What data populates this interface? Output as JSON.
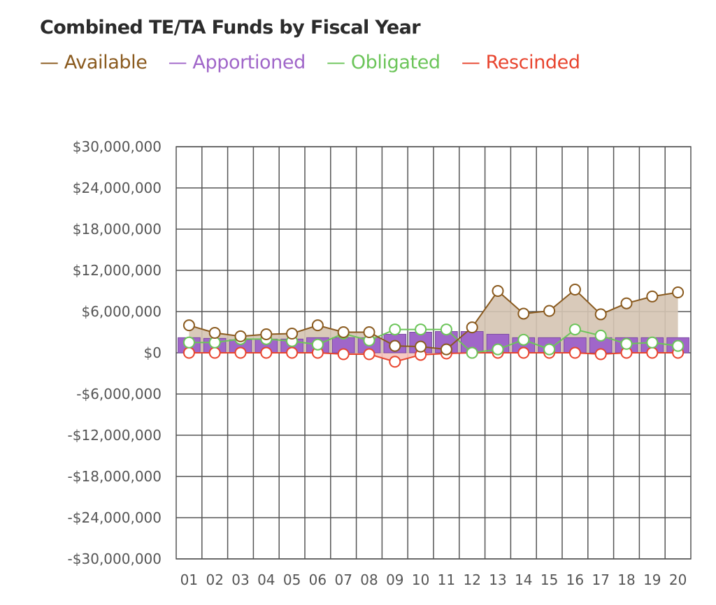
{
  "chart_data": {
    "type": "line",
    "title": "Combined TE/TA Funds by Fiscal Year",
    "xlabel": "",
    "ylabel": "",
    "categories": [
      "01",
      "02",
      "03",
      "04",
      "05",
      "06",
      "07",
      "08",
      "09",
      "10",
      "11",
      "12",
      "13",
      "14",
      "15",
      "16",
      "17",
      "18",
      "19",
      "20"
    ],
    "ylim": [
      -30000000,
      30000000
    ],
    "yticks": [
      30000000,
      24000000,
      18000000,
      12000000,
      6000000,
      0,
      -6000000,
      -12000000,
      -18000000,
      -24000000,
      -30000000
    ],
    "ytick_labels": [
      "$30,000,000",
      "$24,000,000",
      "$18,000,000",
      "$12,000,000",
      "$6,000,000",
      "$0",
      "-$6,000,000",
      "-$12,000,000",
      "-$18,000,000",
      "-$24,000,000",
      "-$30,000,000"
    ],
    "grid": true,
    "legend_position": "top-left",
    "series": [
      {
        "name": "Available",
        "type": "area-line",
        "color": "#8a5a1e",
        "fill": "#d5c4b3",
        "values": [
          4000000,
          2900000,
          2400000,
          2700000,
          2800000,
          4000000,
          3000000,
          3000000,
          1000000,
          900000,
          500000,
          3700000,
          9000000,
          5700000,
          6100000,
          9200000,
          5600000,
          7200000,
          8200000,
          8800000
        ]
      },
      {
        "name": "Apportioned",
        "type": "bar",
        "color": "#a066c9",
        "values": [
          2200000,
          2100000,
          1900000,
          2000000,
          2000000,
          2200000,
          2200000,
          2200000,
          2700000,
          3000000,
          3100000,
          3100000,
          2700000,
          2200000,
          2200000,
          2200000,
          2200000,
          2200000,
          2200000,
          2200000
        ]
      },
      {
        "name": "Obligated",
        "type": "line",
        "color": "#6cc55a",
        "values": [
          1500000,
          1500000,
          2000000,
          2000000,
          1700000,
          1200000,
          2800000,
          1800000,
          3400000,
          3400000,
          3400000,
          0,
          500000,
          1900000,
          500000,
          3400000,
          2500000,
          1300000,
          1500000,
          1000000
        ]
      },
      {
        "name": "Rescinded",
        "type": "line",
        "color": "#e8452f",
        "fill": "#f5c3bc",
        "values": [
          0,
          0,
          0,
          0,
          0,
          0,
          -200000,
          -200000,
          -1300000,
          -300000,
          -100000,
          0,
          0,
          0,
          0,
          0,
          -200000,
          0,
          0,
          0
        ]
      }
    ]
  }
}
